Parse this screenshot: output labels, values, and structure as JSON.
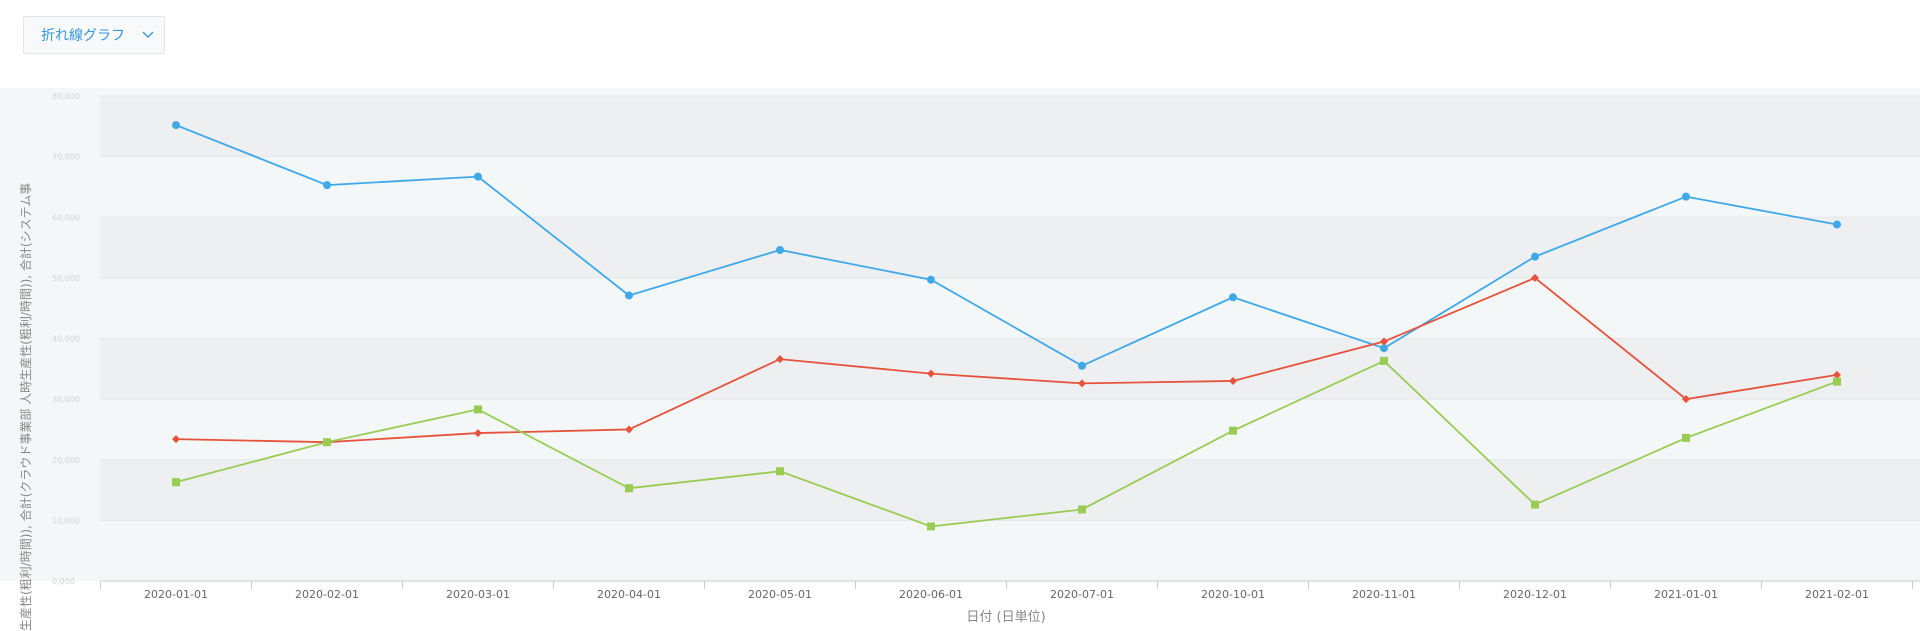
{
  "toolbar": {
    "chart_type_label": "折れ線グラフ",
    "chart_type_icon": "chevron-down-icon"
  },
  "chart_data": {
    "type": "line",
    "title": "",
    "xlabel": "日付 (日単位)",
    "ylabel": "生産性(粗利/時間)), 合計(クラウド事業部 人時生産性(粗利/時間)), 合計(システム事",
    "ylim": [
      0,
      80
    ],
    "grid": true,
    "legend": "none",
    "categories": [
      "2020-01-01",
      "2020-02-01",
      "2020-03-01",
      "2020-04-01",
      "2020-05-01",
      "2020-06-01",
      "2020-07-01",
      "2020-10-01",
      "2020-11-01",
      "2020-12-01",
      "2021-01-01",
      "2021-02-01"
    ],
    "y_ticks": [
      "0,000",
      "10,000",
      "20,000",
      "30,000",
      "40,000",
      "50,000",
      "60,000",
      "70,000",
      "80,000"
    ],
    "series": [
      {
        "color": "#3fa9e8",
        "marker": "circle",
        "values": [
          75.2,
          65.3,
          66.7,
          47.1,
          54.6,
          49.7,
          35.5,
          46.8,
          38.4,
          53.5,
          63.4,
          58.8
        ]
      },
      {
        "color": "#e5533d",
        "marker": "diamond",
        "values": [
          23.4,
          22.9,
          24.4,
          25.0,
          36.6,
          34.2,
          32.6,
          33.0,
          39.5,
          50.0,
          30.0,
          34.0
        ]
      },
      {
        "color": "#99cc52",
        "marker": "square",
        "values": [
          16.3,
          22.9,
          28.3,
          15.3,
          18.1,
          9.0,
          11.8,
          24.8,
          36.3,
          12.6,
          23.6,
          32.9
        ]
      }
    ]
  }
}
